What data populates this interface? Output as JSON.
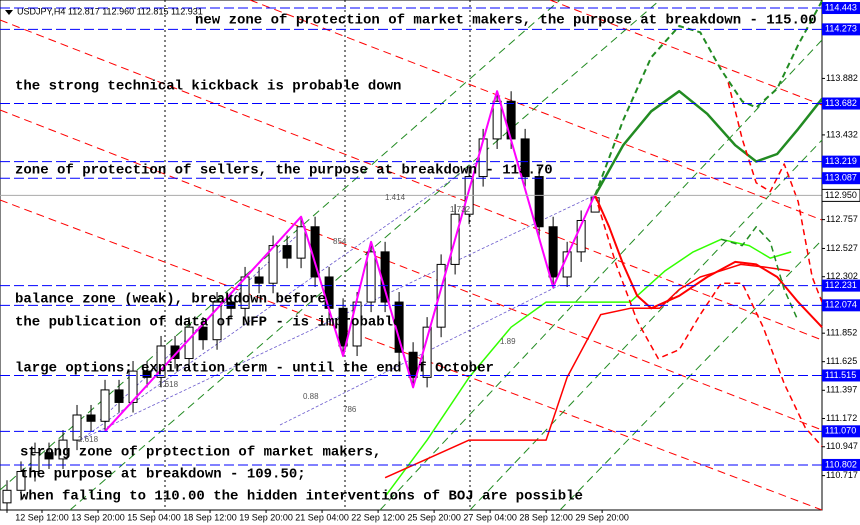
{
  "chart_data": {
    "type": "candlestick",
    "header": "USDJPY,H4 112.817 112.960 112.815 112.931",
    "xlim": [
      -0.5,
      58.2
    ],
    "ylim": [
      110.443,
      114.507
    ],
    "up_color": "#ffffff",
    "down_color": "#000000",
    "open": [
      110.5,
      110.6,
      110.75,
      110.9,
      110.85,
      111.0,
      111.2,
      111.15,
      111.4,
      111.3,
      111.55,
      111.5,
      111.75,
      111.65,
      111.9,
      111.8,
      112.1,
      112.05,
      112.3,
      112.25,
      112.55,
      112.45,
      112.7,
      112.3,
      112.05,
      111.75,
      112.1,
      112.5,
      112.1,
      111.7,
      111.5,
      111.9,
      112.4,
      112.8,
      113.1,
      113.4,
      113.7,
      113.4,
      113.1,
      112.7,
      112.3,
      112.5,
      112.817
    ],
    "high": [
      110.68,
      110.83,
      110.98,
      110.98,
      111.08,
      111.28,
      111.28,
      111.48,
      111.48,
      111.63,
      111.63,
      111.83,
      111.83,
      111.98,
      111.98,
      112.18,
      112.18,
      112.38,
      112.38,
      112.63,
      112.63,
      112.78,
      112.78,
      112.38,
      112.13,
      112.18,
      112.58,
      112.58,
      112.18,
      111.78,
      111.98,
      112.48,
      112.88,
      113.18,
      113.48,
      113.78,
      113.78,
      113.48,
      113.18,
      112.78,
      112.58,
      112.83,
      112.96
    ],
    "low": [
      110.42,
      110.52,
      110.67,
      110.77,
      110.77,
      110.92,
      111.07,
      111.07,
      111.22,
      111.22,
      111.42,
      111.42,
      111.57,
      111.57,
      111.72,
      111.72,
      111.97,
      111.97,
      112.17,
      112.17,
      112.37,
      112.37,
      112.22,
      111.97,
      111.67,
      111.67,
      112.02,
      112.02,
      111.62,
      111.42,
      111.42,
      111.82,
      112.32,
      112.72,
      113.02,
      113.32,
      113.32,
      113.02,
      112.62,
      112.22,
      112.22,
      112.42,
      112.815
    ],
    "close": [
      110.6,
      110.75,
      110.9,
      110.85,
      111.0,
      111.2,
      111.15,
      111.4,
      111.3,
      111.55,
      111.5,
      111.75,
      111.65,
      111.9,
      111.8,
      112.1,
      112.05,
      112.3,
      112.25,
      112.55,
      112.45,
      112.7,
      112.3,
      112.05,
      111.75,
      112.1,
      112.5,
      112.1,
      111.7,
      111.5,
      111.9,
      112.4,
      112.8,
      113.1,
      113.4,
      113.7,
      113.4,
      113.1,
      112.7,
      112.3,
      112.5,
      112.75,
      112.931
    ],
    "overlays": [
      {
        "color": "#ff00ff",
        "dash": false,
        "width": 2,
        "x": [
          7,
          21,
          24,
          26,
          29,
          35,
          39,
          42
        ],
        "values": [
          111.07,
          112.78,
          111.67,
          112.58,
          111.42,
          113.78,
          112.22,
          112.96
        ]
      },
      {
        "color": "#33ff00",
        "dash": false,
        "width": 1.5,
        "x": [
          27,
          30,
          33,
          36,
          38.5,
          41,
          44.5,
          47,
          49,
          51,
          53,
          54.5,
          56
        ],
        "values": [
          110.55,
          111.0,
          111.5,
          111.9,
          112.1,
          112.1,
          112.1,
          112.35,
          112.5,
          112.6,
          112.55,
          112.45,
          112.5
        ]
      },
      {
        "color": "#ff0000",
        "dash": false,
        "width": 1.5,
        "x": [
          27,
          30,
          33,
          36,
          38.5,
          40,
          42.4,
          44.5,
          46.6,
          48,
          49.5,
          51,
          52.4,
          54,
          55.9
        ],
        "values": [
          110.7,
          110.85,
          111.0,
          111.0,
          111.0,
          111.5,
          112.0,
          112.05,
          112.05,
          112.2,
          112.3,
          112.35,
          112.4,
          112.38,
          112.35
        ]
      },
      {
        "color": "#228b22",
        "dash": false,
        "width": 2.5,
        "x": [
          42,
          44,
          46,
          48,
          50,
          52,
          53.5,
          55,
          56.5,
          58.2
        ],
        "values": [
          112.95,
          113.35,
          113.62,
          113.78,
          113.6,
          113.35,
          113.22,
          113.28,
          113.48,
          113.72
        ]
      },
      {
        "color": "#228b22",
        "dash": true,
        "width": 2,
        "x": [
          42,
          44,
          46,
          48,
          49.5,
          51,
          52.5,
          53.5,
          55,
          56.5,
          58.2
        ],
        "values": [
          112.95,
          113.55,
          114.05,
          114.3,
          114.25,
          113.95,
          113.7,
          113.65,
          113.8,
          114.15,
          114.5
        ]
      },
      {
        "color": "#ff0000",
        "dash": false,
        "width": 2,
        "x": [
          42,
          43,
          44,
          45,
          46,
          48,
          50,
          52,
          53.5,
          55,
          56.5,
          58.2
        ],
        "values": [
          112.95,
          112.7,
          112.4,
          112.15,
          112.05,
          112.15,
          112.3,
          112.42,
          112.4,
          112.3,
          112.1,
          111.9
        ]
      },
      {
        "color": "#ff0000",
        "dash": true,
        "width": 1.5,
        "x": [
          42,
          43.5,
          45,
          46.5,
          48,
          49.5,
          51,
          52.5,
          54,
          55.5,
          57,
          58.2
        ],
        "values": [
          112.95,
          112.4,
          111.95,
          111.65,
          111.72,
          112.0,
          112.25,
          112.25,
          111.9,
          111.45,
          111.1,
          110.95
        ]
      },
      {
        "color": "#ff0000",
        "dash": true,
        "width": 1.5,
        "x": [
          51.5,
          52.5,
          53.5,
          54.5,
          55.5,
          56.5,
          57.5,
          58.2
        ],
        "values": [
          113.85,
          113.4,
          113.05,
          112.98,
          113.2,
          112.9,
          112.3,
          112.1
        ]
      },
      {
        "color": "#228b22",
        "dash": true,
        "width": 1.5,
        "x": [
          51,
          52.5,
          53.5,
          54.5,
          55.5,
          56.5
        ],
        "values": [
          112.6,
          112.55,
          112.7,
          112.58,
          112.2,
          111.95
        ]
      }
    ],
    "levels": [
      {
        "value": 114.443,
        "label": "114.443"
      },
      {
        "value": 114.273,
        "label": "114.273"
      },
      {
        "value": 113.682,
        "label": "113.682"
      },
      {
        "value": 113.219,
        "label": "113.219"
      },
      {
        "value": 113.087,
        "label": "113.087"
      },
      {
        "value": 112.231,
        "label": "112.231"
      },
      {
        "value": 112.074,
        "label": "112.074"
      },
      {
        "value": 111.515,
        "label": "111.515"
      },
      {
        "value": 111.07,
        "label": "111.070"
      },
      {
        "value": 110.802,
        "label": "110.802"
      }
    ],
    "level_color": "#0000ff",
    "current_price": {
      "value": 112.95,
      "label": "112.950"
    },
    "yticks": [
      113.882,
      113.432,
      112.757,
      112.527,
      112.302,
      111.852,
      111.625,
      111.397,
      111.172,
      110.947,
      110.717
    ],
    "xticks": [
      {
        "value": 2.5,
        "label": "12 Sep 12:00"
      },
      {
        "value": 6.5,
        "label": "13 Sep 20:00"
      },
      {
        "value": 10.5,
        "label": "15 Sep 04:00"
      },
      {
        "value": 14.5,
        "label": "18 Sep 12:00"
      },
      {
        "value": 18.5,
        "label": "19 Sep 20:00"
      },
      {
        "value": 22.5,
        "label": "21 Sep 04:00"
      },
      {
        "value": 26.5,
        "label": "22 Sep 12:00"
      },
      {
        "value": 30.5,
        "label": "25 Sep 20:00"
      },
      {
        "value": 34.5,
        "label": "27 Sep 04:00"
      },
      {
        "value": 38.5,
        "label": "28 Sep 12:00"
      },
      {
        "value": 42.5,
        "label": "29 Sep 20:00"
      }
    ],
    "annotations": [
      "new zone of protection of market makers, the purpose at breakdown - 115.00",
      "the strong technical kickback is probable down",
      "zone of protection of sellers, the purpose at breakdown - 113.70",
      "balance zone (weak), breakdown before",
      "the publication of data of NFP - is improbable",
      "large options; expiration term - until the end of October",
      "strong zone of protection of market makers,",
      "the purpose at breakdown - 109.50;",
      "when falling to 110.00 the hidden interventions of BOJ are possible"
    ],
    "fib_labels": [
      "1.414",
      "1.732",
      "854",
      "786",
      "0.88",
      "1.618",
      "2.618",
      "1.89"
    ]
  }
}
